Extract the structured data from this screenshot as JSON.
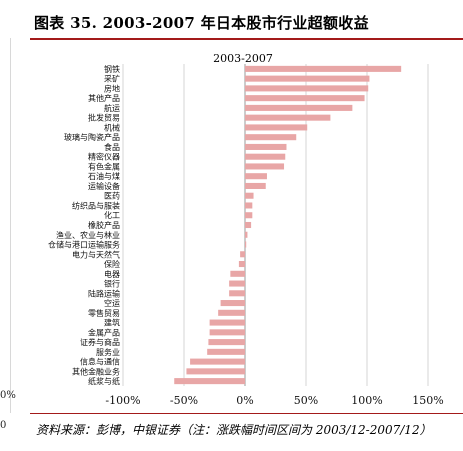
{
  "figure": {
    "title": "图表 35. 2003-2007 年日本股市行业超额收益",
    "source": "资料来源：彭博，中银证券（注：涨跌幅时间区间为 2003/12-2007/12）",
    "left_fragments": [
      "0%",
      "0"
    ]
  },
  "chart_data": {
    "type": "bar",
    "orientation": "horizontal",
    "title": "2003-2007",
    "categories": [
      "钢铁",
      "采矿",
      "房地",
      "其他产品",
      "航运",
      "批发贸易",
      "机械",
      "玻璃与陶瓷产品",
      "食品",
      "精密仪器",
      "有色金属",
      "石油与煤",
      "运输设备",
      "医药",
      "纺织品与服装",
      "化工",
      "橡胶产品",
      "渔业、农业与林业",
      "仓储与港口运输服务",
      "电力与天然气",
      "保险",
      "电器",
      "银行",
      "陆路运输",
      "空运",
      "零售贸易",
      "建筑",
      "金属产品",
      "证券与商品",
      "服务业",
      "信息与通信",
      "其他金融业务",
      "纸浆与纸"
    ],
    "values": [
      128,
      102,
      101,
      98,
      88,
      70,
      51,
      42,
      34,
      33,
      32,
      18,
      17,
      7,
      6,
      6,
      5,
      2,
      1,
      -4,
      -5,
      -12,
      -13,
      -13,
      -20,
      -22,
      -29,
      -29,
      -30,
      -31,
      -45,
      -48,
      -58
    ],
    "xlim": [
      -100,
      150
    ],
    "xticks": [
      -100,
      -50,
      0,
      50,
      100,
      150
    ],
    "xtick_labels": [
      "-100%",
      "-50%",
      "0%",
      "50%",
      "100%",
      "150%"
    ],
    "grid": true,
    "bar_color": "#e8a6a6"
  }
}
